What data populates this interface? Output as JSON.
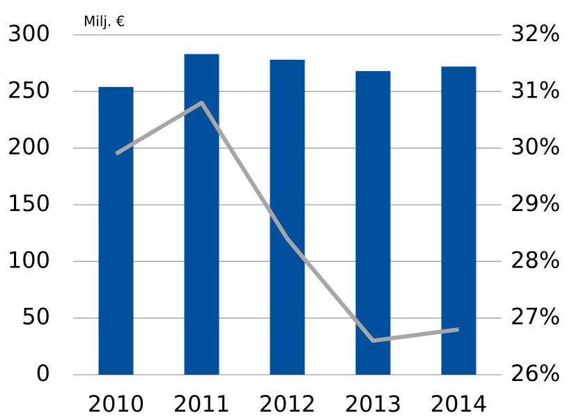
{
  "chart_data": {
    "type": "bar_line",
    "y_label": "Milj. €",
    "categories": [
      "2010",
      "2011",
      "2012",
      "2013",
      "2014"
    ],
    "series": [
      {
        "type": "bar",
        "color": "#00509e",
        "values": [
          254,
          283,
          278,
          268,
          272
        ]
      },
      {
        "type": "line",
        "axis": "y2",
        "color": "#a6a6a6",
        "values": [
          29.9,
          30.8,
          28.4,
          26.6,
          26.8
        ]
      }
    ],
    "ylim": [
      0,
      300
    ],
    "yticks": [
      0,
      50,
      100,
      150,
      200,
      250,
      300
    ],
    "y2lim": [
      26,
      32
    ],
    "y2ticks": [
      {
        "value": 26,
        "label": "26%"
      },
      {
        "value": 27,
        "label": "27%"
      },
      {
        "value": 28,
        "label": "28%"
      },
      {
        "value": 29,
        "label": "29%"
      },
      {
        "value": 30,
        "label": "30%"
      },
      {
        "value": 31,
        "label": "31%"
      },
      {
        "value": 32,
        "label": "32%"
      }
    ],
    "grid": true
  }
}
